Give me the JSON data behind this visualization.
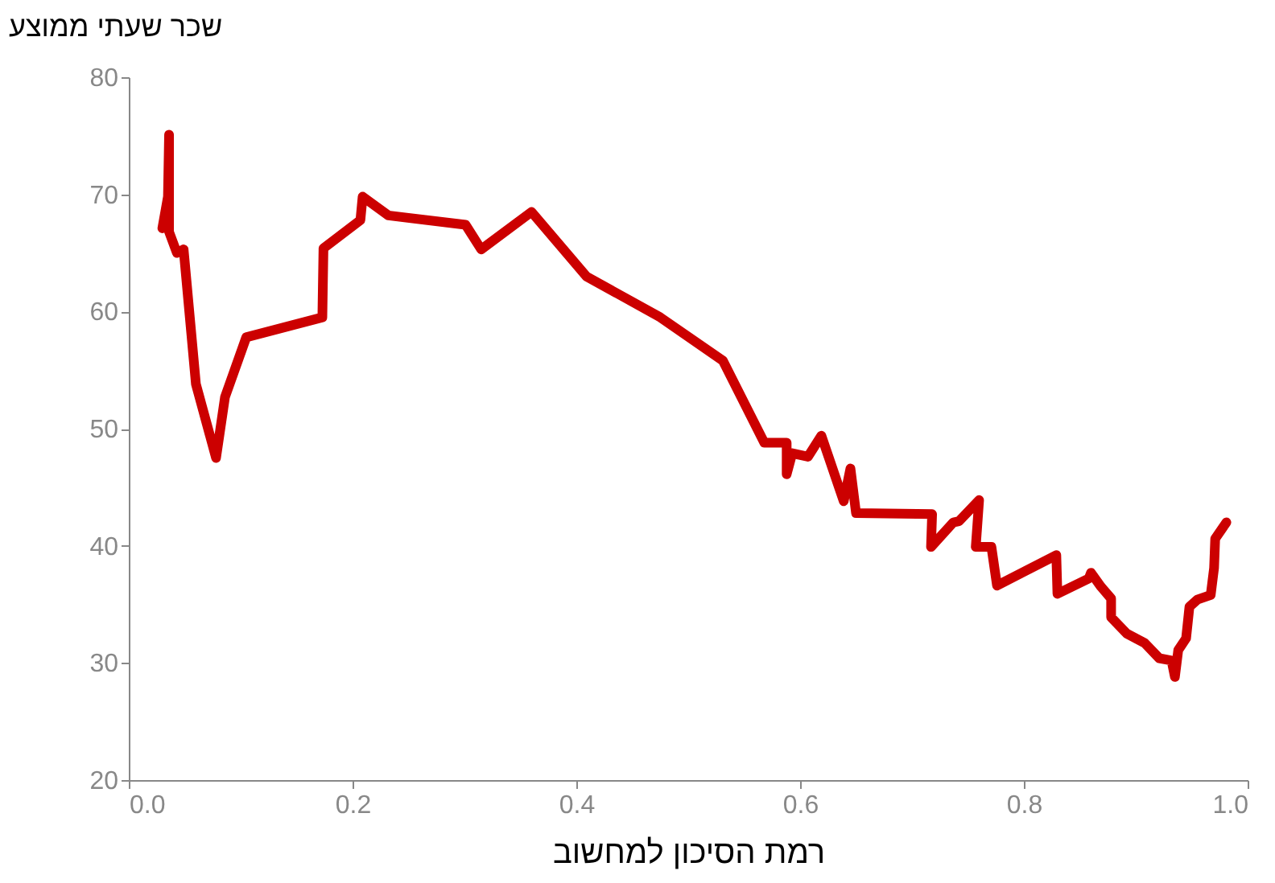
{
  "chart_data": {
    "type": "line",
    "xlabel": "רמת הסיכון למחשוב",
    "ylabel": "שכר שעתי ממוצע",
    "xlim": [
      0,
      1
    ],
    "xticks": [
      {
        "value": 0,
        "label": "0.0"
      },
      0.2,
      0.4,
      0.6,
      0.8,
      {
        "value": 1,
        "label": "1.0"
      }
    ],
    "ylim": [
      20,
      80
    ],
    "yticks": [
      20,
      30,
      40,
      50,
      60,
      70,
      80
    ],
    "grid": false,
    "legend": false,
    "marker": "none",
    "line_style": "solid",
    "series": [
      {
        "color": "#cc0000",
        "x": [
          0.03,
          0.035,
          0.036,
          0.036,
          0.043,
          0.049,
          0.06,
          0.078,
          0.086,
          0.105,
          0.173,
          0.174,
          0.207,
          0.209,
          0.232,
          0.301,
          0.315,
          0.36,
          0.409,
          0.475,
          0.531,
          0.568,
          0.588,
          0.588,
          0.593,
          0.607,
          0.619,
          0.639,
          0.645,
          0.65,
          0.718,
          0.717,
          0.737,
          0.742,
          0.76,
          0.757,
          0.771,
          0.776,
          0.829,
          0.83,
          0.858,
          0.86,
          0.869,
          0.878,
          0.878,
          0.892,
          0.908,
          0.921,
          0.932,
          0.935,
          0.938,
          0.945,
          0.948,
          0.955,
          0.967,
          0.97,
          0.971,
          0.981
        ],
        "values": [
          67.1,
          69.8,
          75.1,
          66.8,
          65.0,
          65.3,
          53.8,
          47.5,
          52.7,
          57.8,
          59.5,
          65.4,
          67.8,
          69.8,
          68.2,
          67.4,
          65.3,
          68.5,
          63.0,
          59.5,
          55.8,
          48.8,
          48.8,
          46.1,
          47.9,
          47.6,
          49.4,
          43.8,
          46.6,
          42.8,
          42.7,
          39.9,
          42.0,
          42.1,
          43.9,
          39.9,
          39.9,
          36.6,
          39.2,
          35.9,
          37.2,
          37.7,
          36.5,
          35.5,
          33.9,
          32.5,
          31.7,
          30.4,
          30.2,
          28.8,
          31.1,
          32.1,
          34.8,
          35.4,
          35.8,
          38.1,
          40.6,
          42.0
        ]
      }
    ]
  }
}
